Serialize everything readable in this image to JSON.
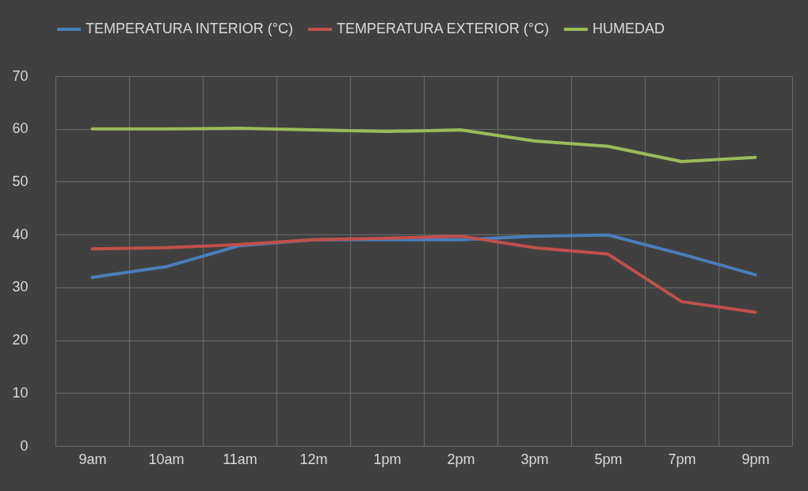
{
  "chart_data": {
    "type": "line",
    "categories": [
      "9am",
      "10am",
      "11am",
      "12m",
      "1pm",
      "2pm",
      "3pm",
      "5pm",
      "7pm",
      "9pm"
    ],
    "series": [
      {
        "name": "TEMPERATURA INTERIOR (°C)",
        "color": "#4a7ebb",
        "values": [
          31.9,
          33.9,
          37.9,
          39,
          39,
          39,
          39.7,
          39.9,
          36.3,
          32.4
        ]
      },
      {
        "name": "TEMPERATURA EXTERIOR (°C)",
        "color": "#c0504d",
        "values": [
          37.3,
          37.5,
          38.1,
          39,
          39.3,
          39.7,
          37.5,
          36.3,
          27.3,
          25.3
        ]
      },
      {
        "name": "HUMEDAD",
        "color": "#9bbb59",
        "values": [
          60,
          60,
          60.1,
          59.8,
          59.5,
          59.8,
          57.7,
          56.7,
          53.8,
          54.6
        ]
      }
    ],
    "ylim": [
      0,
      70
    ],
    "yticks": [
      0,
      10,
      20,
      30,
      40,
      50,
      60,
      70
    ],
    "grid": true,
    "legend": "top",
    "marker": "none",
    "line_style": "solid"
  }
}
